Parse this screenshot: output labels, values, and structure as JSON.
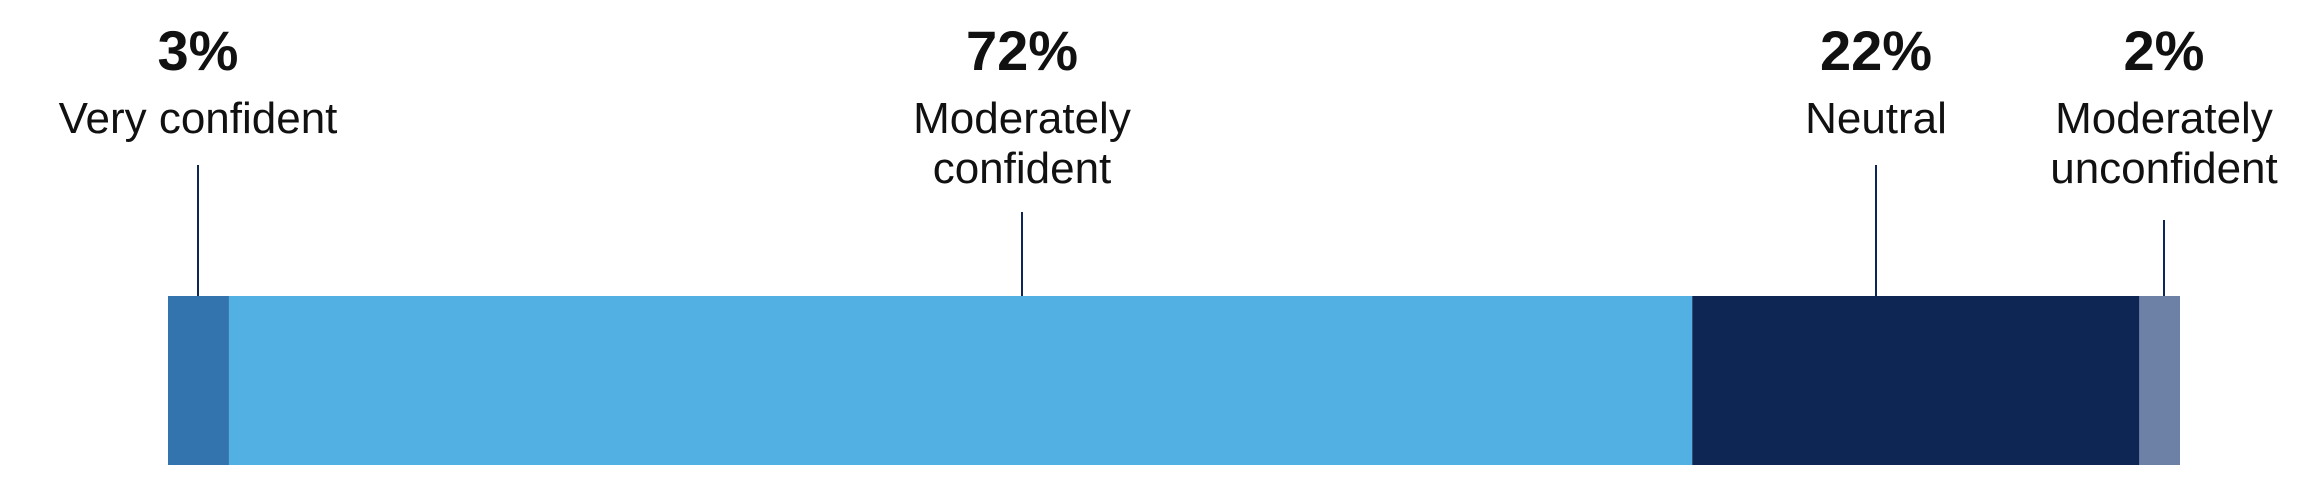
{
  "chart_data": {
    "type": "bar",
    "orientation": "horizontal",
    "stacked": true,
    "categories": [
      "Very confident",
      "Moderately confident",
      "Neutral",
      "Moderately unconfident"
    ],
    "values": [
      3,
      72,
      22,
      2
    ],
    "value_labels": [
      "3%",
      "72%",
      "22%",
      "2%"
    ],
    "category_label_lines": [
      [
        "Very confident"
      ],
      [
        "Moderately",
        "confident"
      ],
      [
        "Neutral"
      ],
      [
        "Moderately",
        "unconfident"
      ]
    ],
    "colors": [
      "#3474ae",
      "#52b1e2",
      "#0e2654",
      "#6d81a6"
    ],
    "leader_color": "#0e2654",
    "title": "",
    "xlabel": "",
    "ylabel": "",
    "grid": false,
    "legend": "none"
  }
}
